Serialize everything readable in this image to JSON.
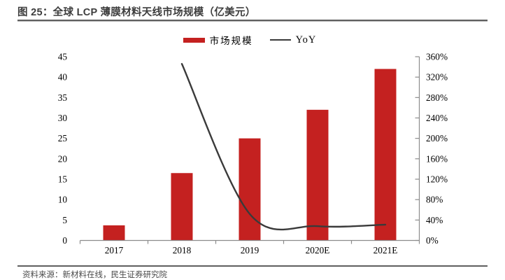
{
  "header": {
    "title": "图 25：全球 LCP 薄膜材料天线市场规模（亿美元）"
  },
  "legend": {
    "items": [
      {
        "label": "市场规模",
        "marker": "bar-swatch",
        "color": "#C42120"
      },
      {
        "label": "YoY",
        "marker": "line-swatch",
        "color": "#3A3A3A"
      }
    ]
  },
  "chart_data": {
    "type": "bar+line-combo",
    "categories": [
      "2017",
      "2018",
      "2019",
      "2020E",
      "2021E"
    ],
    "series": [
      {
        "name": "市场规模",
        "type": "bar",
        "axis": "left",
        "values": [
          3.7,
          16.5,
          25,
          32,
          42
        ]
      },
      {
        "name": "YoY",
        "type": "line",
        "axis": "right",
        "unit": "%",
        "values": [
          null,
          346,
          52,
          28,
          31
        ]
      }
    ],
    "left_axis": {
      "min": 0,
      "max": 45,
      "step": 5,
      "ticks": [
        "0",
        "5",
        "10",
        "15",
        "20",
        "25",
        "30",
        "35",
        "40",
        "45"
      ]
    },
    "right_axis": {
      "min": 0,
      "max": 360,
      "step": 40,
      "ticks": [
        "0%",
        "40%",
        "80%",
        "120%",
        "160%",
        "200%",
        "240%",
        "280%",
        "320%",
        "360%"
      ]
    },
    "grid": false,
    "legend_position": "top-center",
    "title": "全球 LCP 薄膜材料天线市场规模（亿美元）"
  },
  "footer": {
    "source": "资料来源：新材料在线，民生证券研究院"
  },
  "colors": {
    "bar": "#C42120",
    "line": "#3A3A3A",
    "axis": "#8C8C8C",
    "tick_text": "#000000",
    "title_text": "#3D3D3D",
    "rule": "#5F5F5F",
    "source_text": "#4A4A4A"
  }
}
